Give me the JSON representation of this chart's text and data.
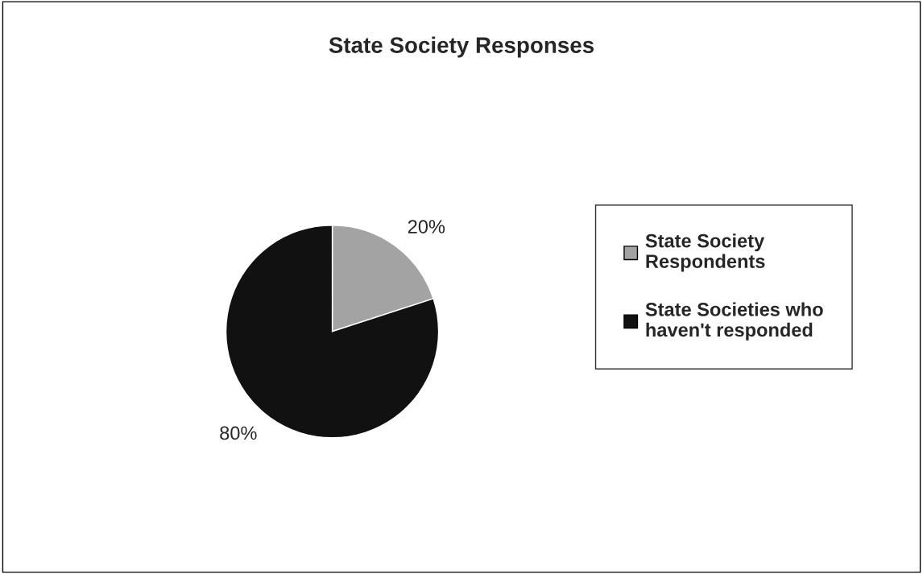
{
  "chart_data": {
    "type": "pie",
    "title": "State Society Responses",
    "categories": [
      "State Society\nRespondents",
      "State Societies who\nhaven't responded"
    ],
    "values": [
      20,
      80
    ],
    "colors": [
      "#a3a3a3",
      "#111111"
    ],
    "value_labels": [
      "20%",
      "80%"
    ],
    "legend": "right"
  }
}
